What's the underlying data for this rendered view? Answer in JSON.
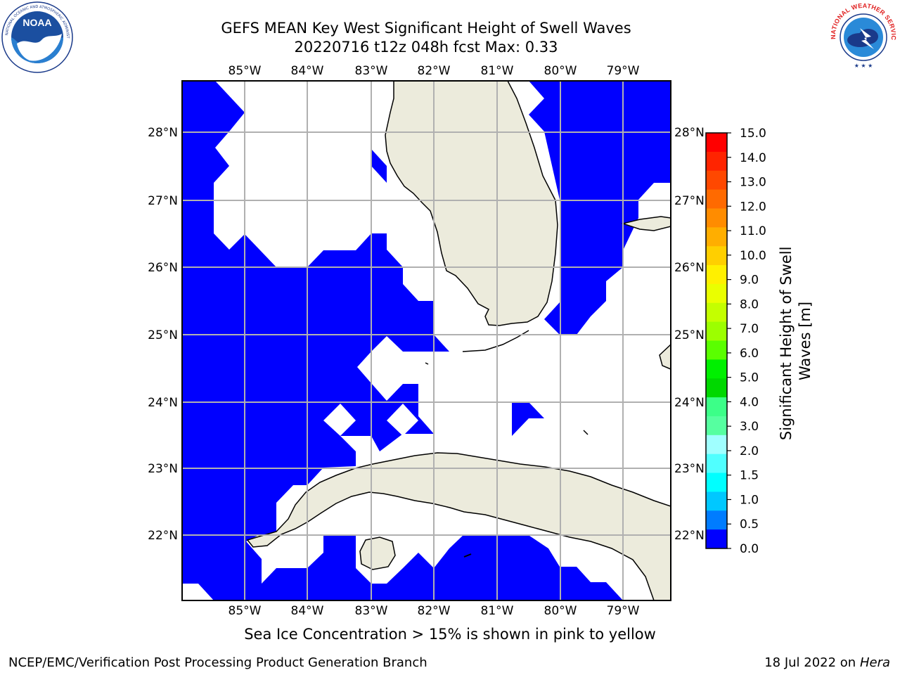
{
  "header": {
    "title_line1": "GEFS MEAN Key West Significant Height of Swell Waves",
    "title_line2": "20220716 t12z 048h fcst   Max: 0.33"
  },
  "logos": {
    "noaa": {
      "text": "NOAA",
      "ring_text": "NATIONAL OCEANIC AND ATMOSPHERIC ADMINISTRATION · U.S. DEPARTMENT OF COMMERCE"
    },
    "nws": {
      "ring_text": "NATIONAL WEATHER SERVICE"
    }
  },
  "map": {
    "lon_labels": [
      "85°W",
      "84°W",
      "83°W",
      "82°W",
      "81°W",
      "80°W",
      "79°W"
    ],
    "lat_labels": [
      "28°N",
      "27°N",
      "26°N",
      "25°N",
      "24°N",
      "23°N",
      "22°N"
    ],
    "colors": {
      "land": "#ecebdc",
      "swell_low": "#0000ff",
      "ocean_nodata": "#ffffff",
      "grid": "#b0b0b0"
    }
  },
  "colorbar": {
    "label": "Significant Height of Swell Waves [m]",
    "ticks": [
      "15.0",
      "14.0",
      "13.0",
      "12.0",
      "11.0",
      "10.0",
      "9.0",
      "8.0",
      "7.0",
      "6.0",
      "5.0",
      "4.0",
      "3.0",
      "2.0",
      "1.5",
      "1.0",
      "0.5",
      "0.0"
    ],
    "colors_top_to_bottom": [
      "#ff0000",
      "#ff2400",
      "#ff4800",
      "#ff6a00",
      "#ff8c00",
      "#ffae00",
      "#ffcf00",
      "#fff000",
      "#eaff00",
      "#c4ff00",
      "#9cff00",
      "#5aff00",
      "#00f000",
      "#00d800",
      "#3cff88",
      "#56ffa0",
      "#a0ffff",
      "#50ffff",
      "#00ffff",
      "#00c8ff",
      "#007cff",
      "#0000ff"
    ]
  },
  "notes": {
    "sea_ice": "Sea Ice Concentration > 15% is shown in pink to yellow"
  },
  "footer": {
    "left": "NCEP/EMC/Verification Post Processing Product Generation Branch",
    "right_date": "18 Jul 2022 on ",
    "right_host": "Hera"
  }
}
